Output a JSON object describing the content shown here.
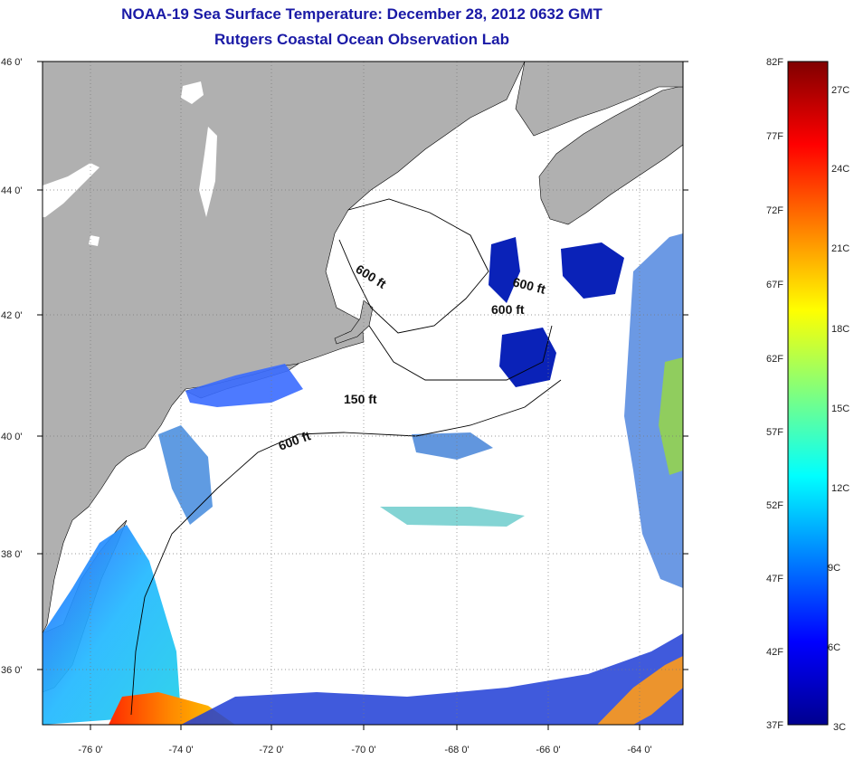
{
  "header": {
    "title": "NOAA-19 Sea Surface Temperature:  December 28, 2012 0632 GMT",
    "subtitle": "Rutgers Coastal Ocean Observation Lab"
  },
  "map": {
    "region": "Northwest Atlantic / Gulf of Maine",
    "lat_range": [
      35,
      46
    ],
    "lon_range": [
      -77,
      -63
    ],
    "lat_ticks": [
      "46 0'",
      "44 0'",
      "42 0'",
      "40 0'",
      "38 0'",
      "36 0'"
    ],
    "lon_ticks": [
      "-76 0'",
      "-74 0'",
      "-72 0'",
      "-70 0'",
      "-68 0'",
      "-66 0'",
      "-64 0'"
    ],
    "depth_labels": [
      "600 ft",
      "600 ft",
      "600 ft",
      "150 ft",
      "600 ft"
    ],
    "colors": {
      "land": "#b0b0b0",
      "cloud": "#ffffff",
      "frame": "#000000"
    }
  },
  "colorbar": {
    "fahrenheit": [
      "82F",
      "77F",
      "72F",
      "67F",
      "62F",
      "57F",
      "52F",
      "47F",
      "42F",
      "37F"
    ],
    "celsius": [
      "27C",
      "24C",
      "21C",
      "18C",
      "15C",
      "12C",
      "9C",
      "6C",
      "3C"
    ],
    "range_f": [
      37,
      82
    ],
    "colormap": "jet"
  }
}
